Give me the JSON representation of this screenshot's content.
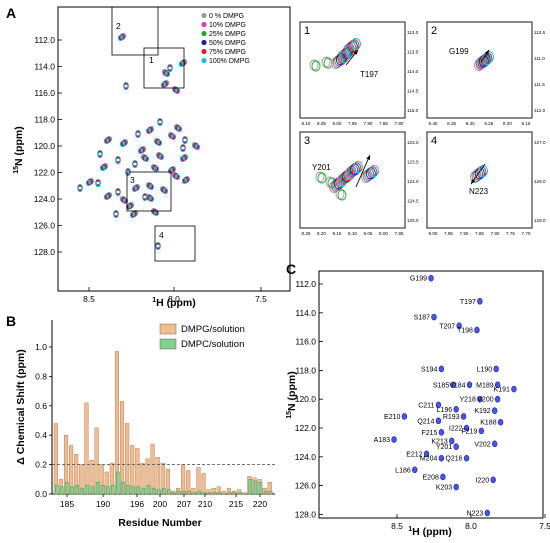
{
  "panels": {
    "a": "A",
    "b": "B",
    "c": "C"
  },
  "panel_a": {
    "ylabel_sup": "15",
    "ylabel_rest": "N (ppm)",
    "xlabel_sup": "1",
    "xlabel_rest": "H (ppm)",
    "xticks": [
      "8.5",
      "8.0",
      "7.5"
    ],
    "yticks": [
      "112.0",
      "114.0",
      "116.0",
      "118.0",
      "120.0",
      "122.0",
      "124.0",
      "126.0",
      "128.0"
    ],
    "legend": [
      {
        "label": "0 % DMPG",
        "color": "#9a9a9a"
      },
      {
        "label": "10% DMPG",
        "color": "#d63cc8"
      },
      {
        "label": "25% DMPG",
        "color": "#22a832"
      },
      {
        "label": "50% DMPG",
        "color": "#1e2390"
      },
      {
        "label": "75% DMPG",
        "color": "#e0222a"
      },
      {
        "label": "100% DMPG",
        "color": "#22b6ee"
      }
    ],
    "boxes": [
      "1",
      "2",
      "3",
      "4"
    ],
    "insets": [
      {
        "id": "1",
        "residue": "T197",
        "xticks": [
          "8.10",
          "8.05",
          "8.00",
          "7.95",
          "7.90",
          "7.85",
          "7.80"
        ],
        "yticks": [
          "113.0",
          "113.5",
          "114.0",
          "114.5",
          "115.0"
        ]
      },
      {
        "id": "2",
        "residue": "G199",
        "xticks": [
          "8.40",
          "8.35",
          "8.30",
          "8.25",
          "8.20",
          "8.15"
        ],
        "yticks": [
          "110.5",
          "111.0",
          "111.5",
          "112.0"
        ]
      },
      {
        "id": "3",
        "residue": "Y201",
        "xticks": [
          "8.25",
          "8.20",
          "8.15",
          "8.10",
          "8.05",
          "8.00",
          "7.95"
        ],
        "yticks": [
          "123.0",
          "123.5",
          "124.0",
          "124.5",
          "125.0"
        ]
      },
      {
        "id": "4",
        "residue": "N223",
        "xticks": [
          "8.00",
          "7.95",
          "7.90",
          "7.85",
          "7.80",
          "7.75",
          "7.70"
        ],
        "yticks": [
          "127.0",
          "128.0",
          "129.0"
        ]
      }
    ]
  },
  "chart_data": {
    "type": "bar",
    "title": "",
    "xlabel": "Residue Number",
    "ylabel": "Δ Chemical Shift (ppm)",
    "ylim": [
      0,
      1.0
    ],
    "yticks": [
      "0.0",
      "0.2",
      "0.4",
      "0.6",
      "0.8",
      "1.0"
    ],
    "xticks": [
      "185",
      "190",
      "196",
      "200",
      "207",
      "210",
      "215",
      "220"
    ],
    "threshold": 0.2,
    "legend_position": "top-right",
    "series": [
      {
        "name": "DMPG/solution",
        "color": "#f2bc8e",
        "values": [
          0.48,
          0.1,
          0.4,
          0.33,
          0.27,
          0.2,
          0.62,
          0.23,
          0.45,
          0.2,
          0.15,
          0.21,
          0.97,
          0.63,
          0.48,
          0.33,
          0.31,
          0.21,
          0.24,
          0.34,
          0.25,
          0.21,
          0.17,
          0.02,
          0.04,
          0.2,
          0.16,
          0.04,
          0.18,
          0.14,
          0.03,
          0.04,
          0.05,
          0.02,
          0.04,
          0.02,
          0.03,
          0.01,
          0.12,
          0.11,
          0.1,
          0.04,
          0.08
        ]
      },
      {
        "name": "DMPC/solution",
        "color": "#7ed38f",
        "values": [
          0.06,
          0.05,
          0.08,
          0.05,
          0.06,
          0.04,
          0.06,
          0.05,
          0.08,
          0.06,
          0.05,
          0.06,
          0.15,
          0.08,
          0.06,
          0.05,
          0.05,
          0.04,
          0.06,
          0.04,
          0.03,
          0.04,
          0.03,
          0.01,
          0.02,
          0.02,
          0.02,
          0.01,
          0.02,
          0.01,
          0.01,
          0.01,
          0.01,
          0.0,
          0.01,
          0.01,
          0.01,
          0.0,
          0.1,
          0.09,
          0.08,
          0.02,
          0.02
        ]
      }
    ]
  },
  "panel_c": {
    "ylabel_sup": "15",
    "ylabel_rest": "N (ppm)",
    "xlabel_sup": "1",
    "xlabel_rest": "H (ppm)",
    "xticks": [
      "8.5",
      "8.0",
      "7.5"
    ],
    "yticks": [
      "112.0",
      "114.0",
      "116.0",
      "118.0",
      "120.0",
      "122.0",
      "124.0",
      "126.0",
      "128.0"
    ],
    "peaks": [
      {
        "label": "G199",
        "h": 8.27,
        "n": 111.6
      },
      {
        "label": "T197",
        "h": 7.94,
        "n": 113.2
      },
      {
        "label": "S187",
        "h": 8.25,
        "n": 114.3
      },
      {
        "label": "T207",
        "h": 8.08,
        "n": 114.9
      },
      {
        "label": "T198",
        "h": 7.96,
        "n": 115.2
      },
      {
        "label": "S194",
        "h": 8.2,
        "n": 117.9
      },
      {
        "label": "L190",
        "h": 7.83,
        "n": 117.9
      },
      {
        "label": "M189",
        "h": 7.82,
        "n": 119.0
      },
      {
        "label": "S185",
        "h": 8.12,
        "n": 119.0
      },
      {
        "label": "V184",
        "h": 8.01,
        "n": 119.0
      },
      {
        "label": "K191",
        "h": 7.71,
        "n": 119.3
      },
      {
        "label": "Y218",
        "h": 7.94,
        "n": 120.0
      },
      {
        "label": "V200",
        "h": 7.82,
        "n": 120.0
      },
      {
        "label": "C211",
        "h": 8.22,
        "n": 120.4
      },
      {
        "label": "L196",
        "h": 8.1,
        "n": 120.7
      },
      {
        "label": "K192",
        "h": 7.84,
        "n": 120.8
      },
      {
        "label": "R193",
        "h": 8.05,
        "n": 121.2
      },
      {
        "label": "E210",
        "h": 8.45,
        "n": 121.2
      },
      {
        "label": "Q214",
        "h": 8.22,
        "n": 121.5
      },
      {
        "label": "K188",
        "h": 7.8,
        "n": 121.6
      },
      {
        "label": "F215",
        "h": 8.2,
        "n": 122.3
      },
      {
        "label": "I222",
        "h": 8.03,
        "n": 122.0
      },
      {
        "label": "F219",
        "h": 7.93,
        "n": 122.2
      },
      {
        "label": "A183",
        "h": 8.52,
        "n": 122.8
      },
      {
        "label": "K213",
        "h": 8.13,
        "n": 122.9
      },
      {
        "label": "Y201",
        "h": 8.1,
        "n": 123.3
      },
      {
        "label": "V202",
        "h": 7.84,
        "n": 123.1
      },
      {
        "label": "E212",
        "h": 8.3,
        "n": 123.8
      },
      {
        "label": "M204",
        "h": 8.2,
        "n": 124.1
      },
      {
        "label": "Q216",
        "h": 8.03,
        "n": 124.1
      },
      {
        "label": "L186",
        "h": 8.38,
        "n": 124.9
      },
      {
        "label": "E208",
        "h": 8.19,
        "n": 125.4
      },
      {
        "label": "I220",
        "h": 7.85,
        "n": 125.6
      },
      {
        "label": "K203",
        "h": 8.1,
        "n": 126.1
      },
      {
        "label": "N223",
        "h": 7.89,
        "n": 127.9
      }
    ]
  }
}
